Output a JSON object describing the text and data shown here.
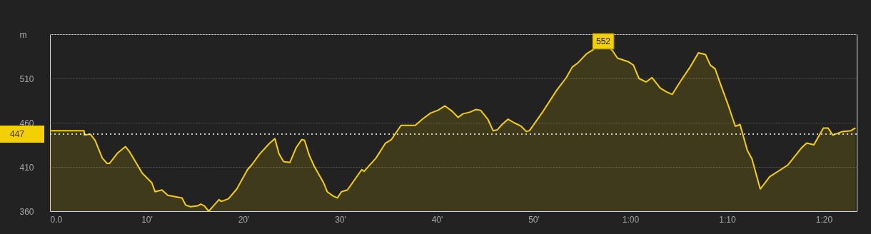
{
  "chart_data": {
    "type": "area",
    "x": [
      0,
      3.52,
      3.56,
      4.18,
      4.67,
      5.41,
      5.9,
      6.15,
      7.01,
      7.8,
      8.24,
      8.61,
      9.54,
      10.53,
      10.87,
      11.57,
      12.18,
      13.65,
      14.02,
      14.52,
      15.25,
      15.59,
      15.96,
      16.41,
      16.9,
      17.47,
      17.71,
      18.45,
      19.31,
      20.42,
      20.91,
      21.63,
      22.63,
      23.25,
      23.67,
      24.15,
      24.8,
      25.46,
      26.03,
      26.32,
      26.81,
      27.31,
      28.29,
      28.66,
      29.28,
      29.72,
      30.13,
      30.75,
      32.23,
      32.47,
      33.7,
      34.69,
      35.3,
      36.29,
      37.76,
      38.5,
      39.36,
      40.1,
      40.83,
      41.57,
      42.19,
      42.68,
      43.42,
      44.04,
      44.52,
      45.26,
      45.81,
      46.25,
      46.74,
      47.36,
      47.97,
      48.71,
      49.25,
      49.57,
      50.92,
      52.4,
      53.38,
      54.0,
      54.61,
      55.48,
      56.21,
      57.2,
      58.18,
      58.67,
      59.78,
      60.32,
      60.89,
      61.62,
      62.24,
      63.1,
      63.71,
      64.33,
      65.19,
      66.18,
      67.04,
      67.77,
      68.27,
      68.76,
      69.37,
      70.11,
      70.85,
      71.34,
      72.08,
      72.57,
      73.43,
      74.41,
      76.26,
      77.73,
      78.23,
      78.97,
      79.95,
      80.44,
      80.93,
      81.92,
      82.78,
      83.27
    ],
    "series": [
      {
        "color": "#f5d000",
        "values": [
          451,
          451,
          446,
          447,
          440,
          420,
          414,
          414,
          426,
          433,
          427,
          420,
          403,
          392,
          382,
          384,
          378,
          375,
          367,
          365,
          366,
          368,
          366,
          360,
          366,
          373,
          371,
          374,
          385,
          407,
          413,
          424,
          436,
          442,
          425,
          416,
          415,
          432,
          441,
          440,
          423,
          411,
          392,
          382,
          377,
          375,
          382,
          384,
          407,
          405,
          420,
          437,
          441,
          457,
          457,
          464,
          471,
          474,
          479,
          473,
          466,
          470,
          472,
          475,
          474,
          464,
          451,
          452,
          458,
          464,
          460,
          456,
          450,
          451,
          472,
          497,
          511,
          523,
          528,
          538,
          543,
          552,
          541,
          533,
          529,
          525,
          510,
          506,
          511,
          499,
          495,
          492,
          507,
          523,
          539,
          537,
          525,
          521,
          502,
          480,
          456,
          458,
          429,
          419,
          385,
          399,
          412,
          432,
          437,
          435,
          454,
          454,
          446,
          450,
          451,
          454
        ]
      }
    ],
    "xlim": [
      0,
      83.4
    ],
    "xticks": [
      {
        "value": 0,
        "label": "0.0"
      },
      {
        "value": 10,
        "label": "10'"
      },
      {
        "value": 20,
        "label": "20'"
      },
      {
        "value": 30,
        "label": "30'"
      },
      {
        "value": 40,
        "label": "40'"
      },
      {
        "value": 50,
        "label": "50'"
      },
      {
        "value": 60,
        "label": "1:00"
      },
      {
        "value": 70,
        "label": "1:10"
      },
      {
        "value": 80,
        "label": "1:20"
      }
    ],
    "ylim": [
      360,
      560
    ],
    "yticks": [
      360,
      410,
      460,
      510,
      {
        "value": 560,
        "label": "m"
      }
    ],
    "grid": "y",
    "marker": "none",
    "line_style": "solid",
    "ref_lines": [
      {
        "axis": "y",
        "value": 447,
        "label": "447",
        "color": "#ffffff",
        "line_style": "dotted"
      }
    ],
    "annotations": [
      {
        "text": "552",
        "x": 57.2,
        "y": 552
      }
    ]
  }
}
